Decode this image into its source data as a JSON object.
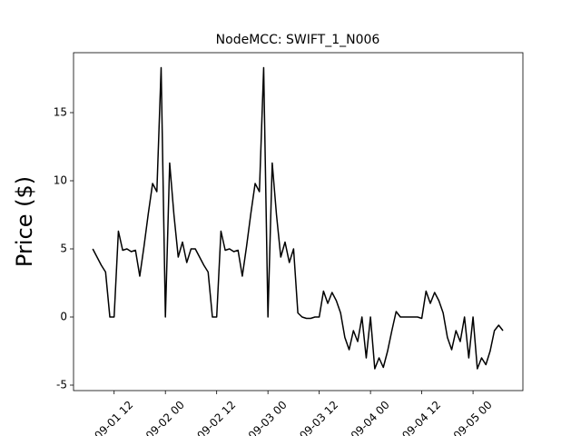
{
  "chart_data": {
    "type": "line",
    "title": "NodeMCC: SWIFT_1_N006",
    "y_label": "Price ($)",
    "x": [
      "09-01 07:00",
      "09-01 08:00",
      "09-01 09:00",
      "09-01 10:00",
      "09-01 11:00",
      "09-01 12:00",
      "09-01 13:00",
      "09-01 14:00",
      "09-01 15:00",
      "09-01 16:00",
      "09-01 17:00",
      "09-01 18:00",
      "09-01 19:00",
      "09-01 20:00",
      "09-01 21:00",
      "09-01 22:00",
      "09-01 23:00",
      "09-02 00:00",
      "09-02 01:00",
      "09-02 02:00",
      "09-02 03:00",
      "09-02 04:00",
      "09-02 05:00",
      "09-02 06:00",
      "09-02 07:00",
      "09-02 08:00",
      "09-02 09:00",
      "09-02 10:00",
      "09-02 11:00",
      "09-02 12:00",
      "09-02 13:00",
      "09-02 14:00",
      "09-02 15:00",
      "09-02 16:00",
      "09-02 17:00",
      "09-02 18:00",
      "09-02 19:00",
      "09-02 20:00",
      "09-02 21:00",
      "09-02 22:00",
      "09-02 23:00",
      "09-03 00:00",
      "09-03 01:00",
      "09-03 02:00",
      "09-03 03:00",
      "09-03 04:00",
      "09-03 05:00",
      "09-03 06:00",
      "09-03 07:00",
      "09-03 08:00",
      "09-03 09:00",
      "09-03 10:00",
      "09-03 11:00",
      "09-03 12:00",
      "09-03 13:00",
      "09-03 14:00",
      "09-03 15:00",
      "09-03 16:00",
      "09-03 17:00",
      "09-03 18:00",
      "09-03 19:00",
      "09-03 20:00",
      "09-03 21:00",
      "09-03 22:00",
      "09-03 23:00",
      "09-04 00:00",
      "09-04 01:00",
      "09-04 02:00",
      "09-04 03:00",
      "09-04 04:00",
      "09-04 05:00",
      "09-04 06:00",
      "09-04 07:00",
      "09-04 08:00",
      "09-04 09:00",
      "09-04 10:00",
      "09-04 11:00",
      "09-04 12:00",
      "09-04 13:00",
      "09-04 14:00",
      "09-04 15:00",
      "09-04 16:00",
      "09-04 17:00",
      "09-04 18:00",
      "09-04 19:00",
      "09-04 20:00",
      "09-04 21:00",
      "09-04 22:00",
      "09-04 23:00",
      "09-05 00:00",
      "09-05 01:00",
      "09-05 02:00",
      "09-05 03:00",
      "09-05 04:00",
      "09-05 05:00",
      "09-05 06:00",
      "09-05 07:00"
    ],
    "series": [
      {
        "color": "#000000",
        "values": [
          5.0,
          4.4,
          3.8,
          3.3,
          0,
          0,
          6.3,
          4.9,
          5.0,
          4.8,
          4.9,
          3.0,
          5.2,
          7.6,
          9.8,
          9.2,
          18.3,
          0,
          11.3,
          7.5,
          4.4,
          5.5,
          4.0,
          5.0,
          5.0,
          4.4,
          3.8,
          3.3,
          0,
          0,
          6.3,
          4.9,
          5.0,
          4.8,
          4.9,
          3.0,
          5.2,
          7.6,
          9.8,
          9.2,
          18.3,
          0,
          11.3,
          7.5,
          4.4,
          5.5,
          4.0,
          5.0,
          0.3,
          0,
          -0.1,
          -0.1,
          0,
          0,
          1.9,
          1.0,
          1.8,
          1.2,
          0.3,
          -1.5,
          -2.4,
          -1.0,
          -1.8,
          0,
          -3.0,
          0,
          -3.8,
          -3.0,
          -3.7,
          -2.5,
          -1.0,
          0.4,
          0,
          0,
          0,
          0,
          0,
          -0.1,
          1.9,
          1.0,
          1.8,
          1.2,
          0.3,
          -1.5,
          -2.4,
          -1.0,
          -1.8,
          0,
          -3.0,
          0,
          -3.8,
          -3.0,
          -3.5,
          -2.5,
          -1.0,
          -0.6,
          -1.0
        ]
      }
    ],
    "xlim": [
      "09-01 02:30",
      "09-05 11:40"
    ],
    "xticks": [
      {
        "value": "09-01 12:00",
        "label": "09-01 12"
      },
      {
        "value": "09-02 00:00",
        "label": "09-02 00"
      },
      {
        "value": "09-02 12:00",
        "label": "09-02 12"
      },
      {
        "value": "09-03 00:00",
        "label": "09-03 00"
      },
      {
        "value": "09-03 12:00",
        "label": "09-03 12"
      },
      {
        "value": "09-04 00:00",
        "label": "09-04 00"
      },
      {
        "value": "09-04 12:00",
        "label": "09-04 12"
      },
      {
        "value": "09-05 00:00",
        "label": "09-05 00"
      }
    ],
    "ylim": [
      -5.4,
      19.4
    ],
    "yticks": [
      -5,
      0,
      5,
      10,
      15
    ]
  }
}
